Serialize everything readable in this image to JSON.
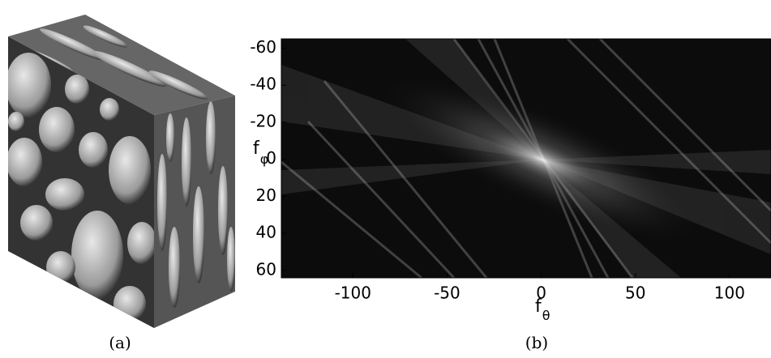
{
  "figure": {
    "panel_a": {
      "caption": "(a)"
    },
    "panel_b": {
      "caption": "(b)",
      "xlabel": {
        "base": "f",
        "sub": "θ"
      },
      "ylabel": {
        "base": "f",
        "sub": "φ"
      },
      "xlim": [
        -138,
        122
      ],
      "ylim": [
        -65,
        64
      ],
      "xticks": [
        -100,
        -50,
        0,
        50,
        100
      ],
      "yticks": [
        -60,
        -40,
        -20,
        0,
        20,
        40,
        60
      ]
    }
  }
}
